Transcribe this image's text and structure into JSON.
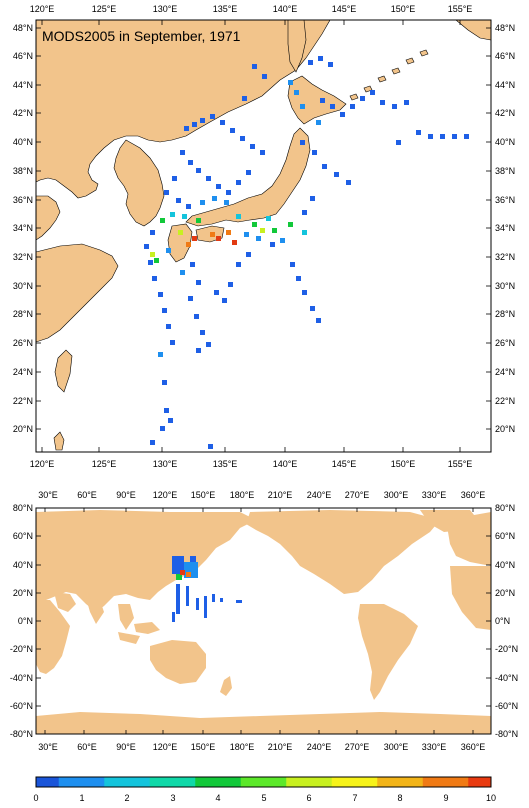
{
  "top_map": {
    "title": "MODS2005 in September, 1971",
    "lon_labels": [
      "120°E",
      "125°E",
      "130°E",
      "135°E",
      "140°E",
      "145°E",
      "150°E",
      "155°E"
    ],
    "lat_labels": [
      "48°N",
      "46°N",
      "44°N",
      "42°N",
      "40°N",
      "38°N",
      "36°N",
      "34°N",
      "32°N",
      "30°N",
      "28°N",
      "26°N",
      "24°N",
      "22°N",
      "20°N"
    ]
  },
  "bottom_map": {
    "lon_labels": [
      "30°E",
      "60°E",
      "90°E",
      "120°E",
      "150°E",
      "180°E",
      "210°E",
      "240°E",
      "270°E",
      "300°E",
      "330°E",
      "360°E"
    ],
    "lat_labels": [
      "80°N",
      "60°N",
      "40°N",
      "20°N",
      "0°N",
      "-20°N",
      "-40°N",
      "-60°N",
      "-80°N"
    ]
  },
  "colorbar": {
    "labels": [
      "0",
      "1",
      "2",
      "3",
      "4",
      "5",
      "6",
      "7",
      "8",
      "9",
      "10"
    ],
    "colors": [
      "#1a55d9",
      "#1e8fef",
      "#14c4dc",
      "#10d8a8",
      "#12c83a",
      "#5ce82a",
      "#c8f020",
      "#f7f31a",
      "#f2b418",
      "#f07a14",
      "#e83a10"
    ]
  },
  "colors": {
    "land": "#f2c48b",
    "ocean": "#ffffff",
    "low_density": "#1e5fe6",
    "mid_density": "#17d07a",
    "high_density": "#e23a12"
  },
  "chart_data": {
    "type": "heatmap",
    "title": "MODS2005 in September, 1971",
    "top_extent": {
      "lon": [
        119,
        157
      ],
      "lat": [
        19,
        49
      ]
    },
    "bottom_extent": {
      "lon": [
        20,
        370
      ],
      "lat": [
        -80,
        80
      ]
    },
    "colorbar_range": [
      0,
      10
    ]
  }
}
